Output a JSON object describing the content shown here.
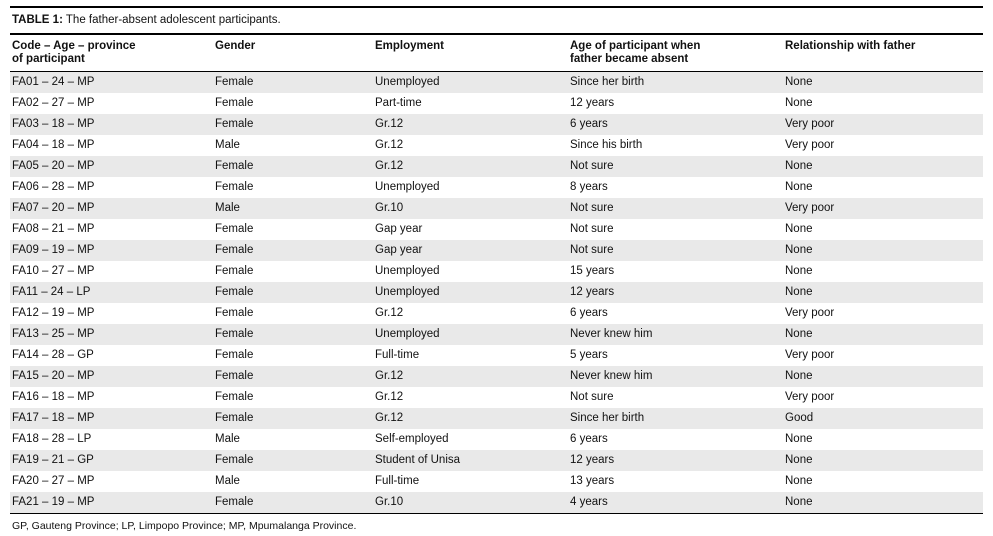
{
  "table": {
    "label": "TABLE 1:",
    "title": "The father-absent adolescent participants.",
    "columns": [
      "Code – Age – province\nof participant",
      "Gender",
      "Employment",
      "Age of participant when\nfather became absent",
      "Relationship with father"
    ],
    "rows": [
      [
        "FA01 – 24 – MP",
        "Female",
        "Unemployed",
        "Since her birth",
        "None"
      ],
      [
        "FA02 – 27 – MP",
        "Female",
        "Part-time",
        "12 years",
        "None"
      ],
      [
        "FA03 – 18 – MP",
        "Female",
        "Gr.12",
        "6 years",
        "Very poor"
      ],
      [
        "FA04 – 18 – MP",
        "Male",
        "Gr.12",
        "Since his birth",
        "Very poor"
      ],
      [
        "FA05 – 20 – MP",
        "Female",
        "Gr.12",
        "Not sure",
        "None"
      ],
      [
        "FA06 – 28 – MP",
        "Female",
        "Unemployed",
        "8 years",
        "None"
      ],
      [
        "FA07 – 20 – MP",
        "Male",
        "Gr.10",
        "Not sure",
        "Very poor"
      ],
      [
        "FA08 – 21 – MP",
        "Female",
        "Gap year",
        "Not sure",
        "None"
      ],
      [
        "FA09 – 19 – MP",
        "Female",
        "Gap year",
        "Not sure",
        "None"
      ],
      [
        "FA10 – 27 – MP",
        "Female",
        "Unemployed",
        "15 years",
        "None"
      ],
      [
        "FA11 – 24 – LP",
        "Female",
        "Unemployed",
        "12 years",
        "None"
      ],
      [
        "FA12 – 19 – MP",
        "Female",
        "Gr.12",
        "6 years",
        "Very poor"
      ],
      [
        "FA13 – 25 – MP",
        "Female",
        "Unemployed",
        "Never knew him",
        "None"
      ],
      [
        "FA14 – 28 – GP",
        "Female",
        "Full-time",
        "5 years",
        "Very poor"
      ],
      [
        "FA15 – 20 – MP",
        "Female",
        "Gr.12",
        "Never knew him",
        "None"
      ],
      [
        "FA16 – 18 – MP",
        "Female",
        "Gr.12",
        "Not sure",
        "Very poor"
      ],
      [
        "FA17 – 18 – MP",
        "Female",
        "Gr.12",
        "Since her birth",
        "Good"
      ],
      [
        "FA18 – 28 – LP",
        "Male",
        "Self-employed",
        "6 years",
        "None"
      ],
      [
        "FA19 – 21 – GP",
        "Female",
        "Student of Unisa",
        "12 years",
        "None"
      ],
      [
        "FA20 – 27 – MP",
        "Male",
        "Full-time",
        "13 years",
        "None"
      ],
      [
        "FA21 – 19 – MP",
        "Female",
        "Gr.10",
        "4 years",
        "None"
      ]
    ],
    "footnote": "GP, Gauteng Province; LP, Limpopo Province; MP, Mpumalanga Province.",
    "colors": {
      "stripe": "#e9e9e9",
      "rule": "#000000"
    }
  }
}
